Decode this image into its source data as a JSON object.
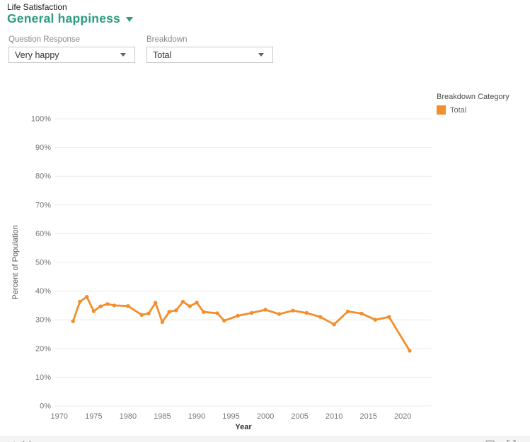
{
  "header": {
    "section_label": "Life Satisfaction",
    "title": "General happiness"
  },
  "filters": [
    {
      "label": "Question Response",
      "value": "Very happy"
    },
    {
      "label": "Breakdown",
      "value": "Total"
    }
  ],
  "legend": {
    "title": "Breakdown Category",
    "items": [
      {
        "label": "Total",
        "color": "#F28E2B"
      }
    ]
  },
  "chart_data": {
    "type": "line",
    "title": "",
    "xlabel": "Year",
    "ylabel": "Percent of Population",
    "xlim": [
      1969.4,
      2024.2
    ],
    "ylim": [
      0,
      100
    ],
    "grid": true,
    "legend_position": "top-right",
    "x_ticks": [
      1970,
      1975,
      1980,
      1985,
      1990,
      1995,
      2000,
      2005,
      2010,
      2015,
      2020
    ],
    "y_ticks": [
      {
        "v": 0,
        "label": "0%"
      },
      {
        "v": 10,
        "label": "10%"
      },
      {
        "v": 20,
        "label": "20%"
      },
      {
        "v": 30,
        "label": "30%"
      },
      {
        "v": 40,
        "label": "40%"
      },
      {
        "v": 50,
        "label": "50%"
      },
      {
        "v": 60,
        "label": "60%"
      },
      {
        "v": 70,
        "label": "70%"
      },
      {
        "v": 80,
        "label": "80%"
      },
      {
        "v": 90,
        "label": "90%"
      },
      {
        "v": 100,
        "label": "100%"
      }
    ],
    "series": [
      {
        "name": "Total",
        "color": "#F28E2B",
        "x": [
          1972,
          1973,
          1974,
          1975,
          1976,
          1977,
          1978,
          1980,
          1982,
          1983,
          1984,
          1985,
          1986,
          1987,
          1988,
          1989,
          1990,
          1991,
          1993,
          1994,
          1996,
          1998,
          2000,
          2002,
          2004,
          2006,
          2008,
          2010,
          2012,
          2014,
          2016,
          2018,
          2021
        ],
        "y": [
          29.5,
          36.3,
          38.0,
          33.0,
          34.7,
          35.5,
          35.0,
          34.8,
          31.7,
          32.2,
          35.9,
          29.2,
          32.8,
          33.3,
          36.3,
          34.7,
          36.0,
          32.7,
          32.3,
          29.7,
          31.4,
          32.4,
          33.5,
          32.0,
          33.2,
          32.4,
          31.0,
          28.4,
          32.9,
          32.2,
          30.0,
          31.0,
          19.2
        ]
      }
    ]
  },
  "footer": {
    "logo_text": "tableau"
  }
}
